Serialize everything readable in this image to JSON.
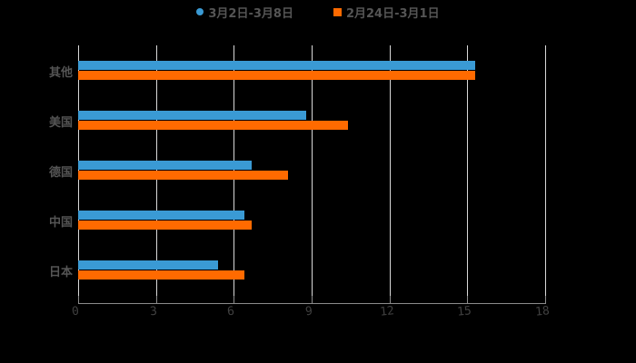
{
  "chart_data": {
    "type": "bar",
    "orientation": "horizontal",
    "title": "",
    "xlabel": "",
    "ylabel": "",
    "categories": [
      "其他",
      "美国",
      "德国",
      "中国",
      "日本"
    ],
    "series": [
      {
        "name": "3月2日-3月8日",
        "color": "#3a9ad4",
        "values": [
          15.3,
          8.8,
          6.7,
          6.4,
          5.4
        ]
      },
      {
        "name": "2月24日-3月1日",
        "color": "#ff6a00",
        "values": [
          15.3,
          10.4,
          8.1,
          6.7,
          6.4
        ]
      }
    ],
    "xlim": [
      0,
      18
    ],
    "xticks": [
      "0",
      "3",
      "6",
      "9",
      "12",
      "15",
      "18"
    ],
    "grid": true,
    "legend_position": "top"
  },
  "legend": {
    "items": [
      {
        "label": "3月2日-3月8日",
        "color": "#3a9ad4",
        "marker": "circle"
      },
      {
        "label": "2月24日-3月1日",
        "color": "#ff6a00",
        "marker": "square"
      }
    ]
  }
}
